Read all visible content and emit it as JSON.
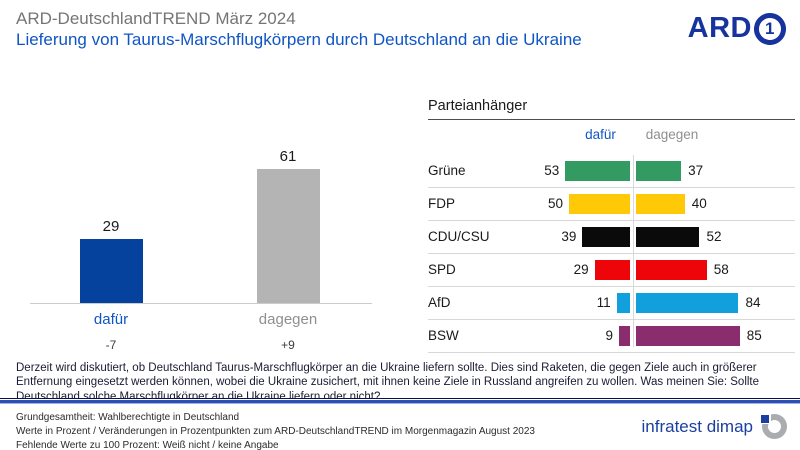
{
  "header": {
    "pretitle": "ARD-DeutschlandTREND März 2024",
    "title": "Lieferung von Taurus-Marschflugkörpern durch Deutschland an die Ukraine",
    "brand": "ARD",
    "brand_one": "1"
  },
  "chart_data": [
    {
      "type": "bar",
      "title": "",
      "categories": [
        "dafür",
        "dagegen"
      ],
      "values": [
        29,
        61
      ],
      "changes": [
        "-7",
        "+9"
      ],
      "bar_colors": [
        "#04429e",
        "#b4b4b4"
      ],
      "label_colors": [
        "#0f55c4",
        "#8f8f8f"
      ],
      "ylim": [
        0,
        70
      ],
      "grid": false
    },
    {
      "type": "bar",
      "orientation": "horizontal-diverging",
      "title": "Parteianhänger",
      "col_headers": {
        "left": "dafür",
        "right": "dagegen"
      },
      "categories": [
        "Grüne",
        "FDP",
        "CDU/CSU",
        "SPD",
        "AfD",
        "BSW"
      ],
      "series": [
        {
          "name": "dafür",
          "values": [
            53,
            50,
            39,
            29,
            11,
            9
          ]
        },
        {
          "name": "dagegen",
          "values": [
            37,
            40,
            52,
            58,
            84,
            85
          ]
        }
      ],
      "party_colors": [
        "#339b62",
        "#ffc907",
        "#0a0a0a",
        "#ee0509",
        "#12a0dd",
        "#8b2c6f"
      ],
      "xlim": [
        0,
        100
      ],
      "legend_position": "top"
    }
  ],
  "question": "Derzeit wird diskutiert, ob Deutschland Taurus-Marschflugkörper an die Ukraine liefern sollte. Dies sind Raketen, die gegen Ziele auch in größerer Entfernung eingesetzt werden können, wobei die Ukraine zusichert, mit ihnen keine Ziele in Russland angreifen zu wollen. Was meinen Sie: Sollte Deutschland solche Marschflugkörper an die Ukraine liefern oder nicht?",
  "footnotes": [
    "Grundgesamtheit: Wahlberechtigte in Deutschland",
    "Werte in Prozent / Veränderungen  in Prozentpunkten zum ARD-DeutschlandTREND  im Morgenmagazin  August 2023",
    "Fehlende  Werte zu 100 Prozent: Weiß nicht / keine Angabe"
  ],
  "source": {
    "name": "infratest dimap"
  }
}
